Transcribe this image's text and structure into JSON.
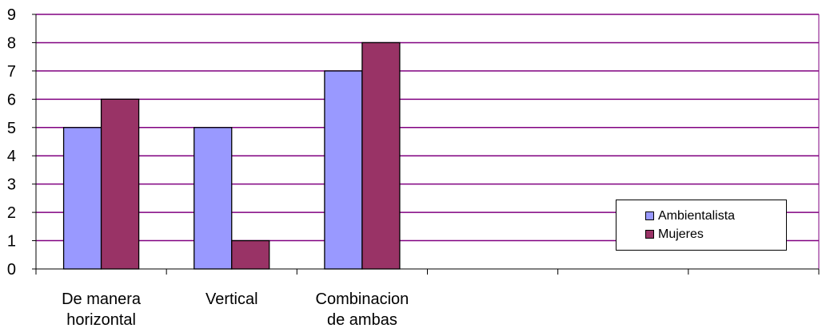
{
  "chart_data": {
    "type": "bar",
    "categories": [
      "De manera\nhorizontal",
      "Vertical",
      "Combinacion\nde ambas",
      "",
      "",
      ""
    ],
    "series": [
      {
        "name": "Ambientalista",
        "values": [
          5,
          5,
          7,
          null,
          null,
          null
        ],
        "color": "#9999ff"
      },
      {
        "name": "Mujeres",
        "values": [
          6,
          1,
          8,
          null,
          null,
          null
        ],
        "color": "#993366"
      }
    ],
    "title": "",
    "xlabel": "",
    "ylabel": "",
    "ylim": [
      0,
      9
    ],
    "yticks": [
      0,
      1,
      2,
      3,
      4,
      5,
      6,
      7,
      8,
      9
    ],
    "grid": true,
    "grid_color": "#800080",
    "legend_position": "right"
  }
}
